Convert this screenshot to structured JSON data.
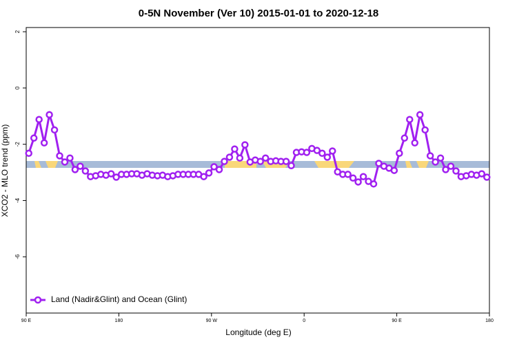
{
  "chart_data": {
    "type": "line",
    "title": "0-5N November (Ver 10)   2015-01-01 to 2020-12-18",
    "xlabel": "Longitude (deg E)",
    "ylabel": "XCO2 - MLO trend (ppm)",
    "x": [
      92.5,
      97.5,
      102.5,
      107.5,
      112.5,
      117.5,
      122.5,
      127.5,
      132.5,
      137.5,
      142.5,
      147.5,
      152.5,
      157.5,
      162.5,
      167.5,
      172.5,
      177.5,
      182.5,
      187.5,
      192.5,
      197.5,
      202.5,
      207.5,
      212.5,
      217.5,
      222.5,
      227.5,
      232.5,
      237.5,
      242.5,
      247.5,
      252.5,
      257.5,
      262.5,
      267.5,
      272.5,
      277.5,
      282.5,
      287.5,
      292.5,
      297.5,
      302.5,
      307.5,
      312.5,
      317.5,
      322.5,
      327.5,
      332.5,
      337.5,
      342.5,
      347.5,
      352.5,
      357.5,
      362.5,
      367.5,
      372.5,
      377.5,
      382.5,
      387.5,
      392.5,
      397.5,
      402.5,
      407.5,
      412.5,
      417.5,
      422.5,
      427.5,
      432.5,
      437.5,
      442.5,
      447.5,
      452.5,
      457.5,
      462.5,
      467.5,
      472.5,
      477.5,
      482.5,
      487.5,
      492.5,
      497.5,
      502.5,
      507.5,
      512.5,
      517.5,
      522.5,
      527.5,
      532.5,
      537.5
    ],
    "series": [
      {
        "name": "Land (Nadir&Glint) and Ocean (Glint)",
        "color": "#a020f0",
        "values": [
          -2.32,
          -1.78,
          -1.12,
          -1.95,
          -0.95,
          -1.49,
          -2.41,
          -2.63,
          -2.49,
          -2.9,
          -2.78,
          -2.95,
          -3.15,
          -3.12,
          -3.07,
          -3.1,
          -3.05,
          -3.17,
          -3.07,
          -3.07,
          -3.05,
          -3.05,
          -3.1,
          -3.05,
          -3.1,
          -3.12,
          -3.1,
          -3.15,
          -3.12,
          -3.07,
          -3.07,
          -3.07,
          -3.07,
          -3.07,
          -3.15,
          -3.02,
          -2.8,
          -2.9,
          -2.61,
          -2.46,
          -2.17,
          -2.49,
          -2.02,
          -2.63,
          -2.56,
          -2.61,
          -2.49,
          -2.61,
          -2.59,
          -2.61,
          -2.61,
          -2.76,
          -2.29,
          -2.27,
          -2.29,
          -2.15,
          -2.22,
          -2.32,
          -2.46,
          -2.24,
          -2.98,
          -3.07,
          -3.07,
          -3.2,
          -3.34,
          -3.15,
          -3.32,
          -3.41,
          -2.68,
          -2.78,
          -2.85,
          -2.93,
          -2.32,
          -1.78,
          -1.12,
          -1.95,
          -0.95,
          -1.49,
          -2.41,
          -2.63,
          -2.49,
          -2.9,
          -2.78,
          -2.95,
          -3.15,
          -3.12,
          -3.07,
          -3.1,
          -3.05,
          -3.17
        ]
      }
    ],
    "xlim": [
      90,
      540
    ],
    "xticks": [
      {
        "value": 90,
        "label": "90 E"
      },
      {
        "value": 180,
        "label": "180"
      },
      {
        "value": 270,
        "label": "90 W"
      },
      {
        "value": 360,
        "label": "0"
      },
      {
        "value": 450,
        "label": "90 E"
      },
      {
        "value": 540,
        "label": "180"
      }
    ],
    "ylim": [
      -8,
      2.15
    ],
    "yticks": [
      2,
      0,
      -2,
      -4,
      -6
    ],
    "legend": "bottom-left"
  }
}
